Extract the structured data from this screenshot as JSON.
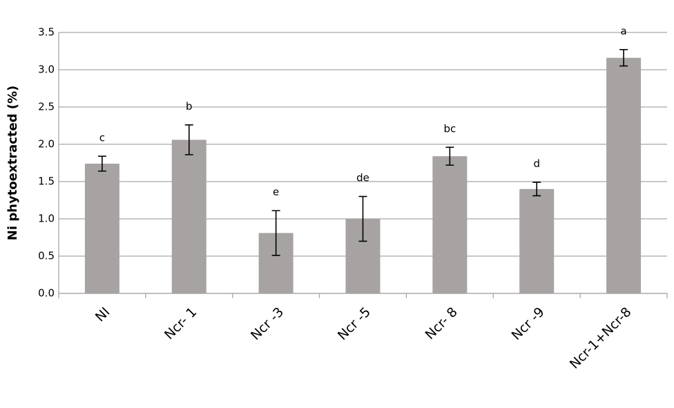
{
  "chart_data": {
    "type": "bar",
    "y_label": "Ni phytoextracted  (%)",
    "categories": [
      "NI",
      "Ncr- 1",
      "Ncr -3",
      "Ncr -5",
      "Ncr- 8",
      "Ncr -9",
      "Ncr-1+Ncr-8"
    ],
    "values": [
      1.74,
      2.06,
      0.81,
      1.0,
      1.84,
      1.4,
      3.16
    ],
    "errors": [
      0.1,
      0.2,
      0.3,
      0.3,
      0.12,
      0.09,
      0.11
    ],
    "letters": [
      "c",
      "b",
      "e",
      "de",
      "bc",
      "d",
      "a"
    ],
    "color": "#a6a3a2",
    "ylim": [
      0,
      3.5
    ],
    "yticks": [
      {
        "value": 0,
        "label": "0.0"
      },
      0.5,
      {
        "value": 1,
        "label": "1.0"
      },
      1.5,
      {
        "value": 2,
        "label": "2.0"
      },
      2.5,
      {
        "value": 3,
        "label": "3.0"
      },
      3.5
    ],
    "grid": true
  }
}
